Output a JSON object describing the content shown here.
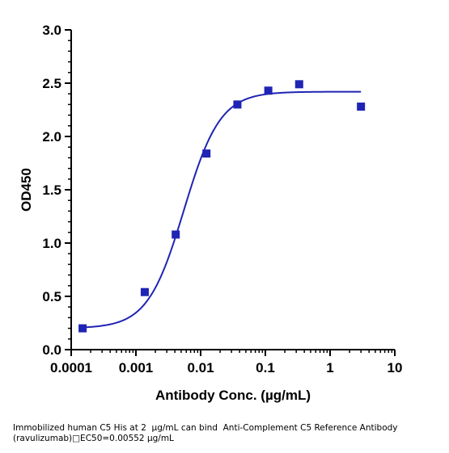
{
  "caption": {
    "line1": "Immobilized human C5 His at 2  µg/mL can bind  Anti-Complement C5 Reference Antibody",
    "line2": "(ravulizumab)□EC50=0.00552 µg/mL"
  },
  "chart_data": {
    "type": "scatter",
    "xlabel": "Antibody Conc. (µg/mL)",
    "ylabel": "OD450",
    "x_scale": "log",
    "xlim": [
      0.0001,
      10
    ],
    "ylim": [
      0,
      3.0
    ],
    "x_ticks": [
      {
        "value": 0.0001,
        "label": "0.0001"
      },
      {
        "value": 0.001,
        "label": "0.001"
      },
      {
        "value": 0.01,
        "label": "0.01"
      },
      {
        "value": 0.1,
        "label": "0.1"
      },
      {
        "value": 1,
        "label": "1"
      },
      {
        "value": 10,
        "label": "10"
      }
    ],
    "y_ticks": [
      {
        "value": 0.0,
        "label": "0.0"
      },
      {
        "value": 0.5,
        "label": "0.5"
      },
      {
        "value": 1.0,
        "label": "1.0"
      },
      {
        "value": 1.5,
        "label": "1.5"
      },
      {
        "value": 2.0,
        "label": "2.0"
      },
      {
        "value": 2.5,
        "label": "2.5"
      },
      {
        "value": 3.0,
        "label": "3.0"
      }
    ],
    "series": [
      {
        "color": "#1f24b4",
        "marker": "square",
        "points": [
          {
            "x": 0.00015,
            "y": 0.2
          },
          {
            "x": 0.00137,
            "y": 0.54
          },
          {
            "x": 0.00412,
            "y": 1.08
          },
          {
            "x": 0.0123,
            "y": 1.84
          },
          {
            "x": 0.037,
            "y": 2.3
          },
          {
            "x": 0.111,
            "y": 2.43
          },
          {
            "x": 0.333,
            "y": 2.49
          },
          {
            "x": 3.0,
            "y": 2.28
          }
        ],
        "fit": {
          "model": "4PL",
          "bottom": 0.2,
          "top": 2.42,
          "ec50": 0.00552,
          "hill": 1.55
        }
      }
    ],
    "grid": false,
    "legend": "none"
  }
}
